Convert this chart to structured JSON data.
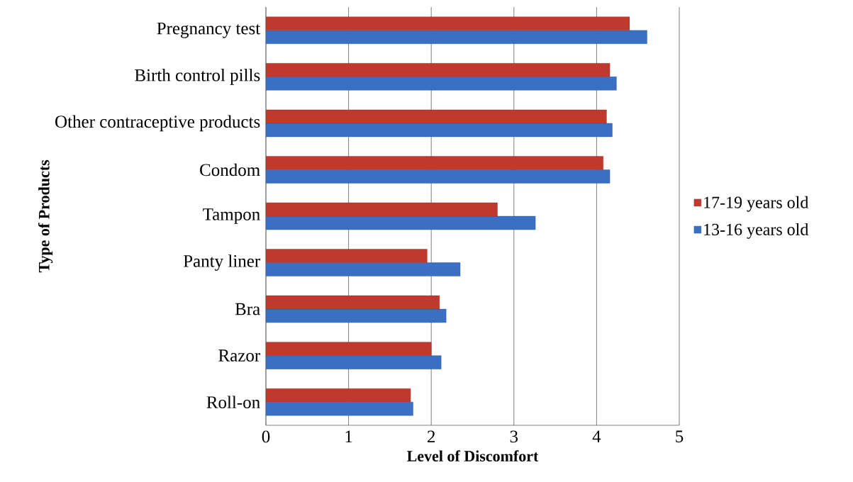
{
  "chart_data": {
    "type": "bar",
    "orientation": "horizontal",
    "xlabel": "Level of Discomfort",
    "ylabel": "Type of Products",
    "categories": [
      "Pregnancy test",
      "Birth control pills",
      "Other contraceptive products",
      "Condom",
      "Tampon",
      "Panty liner",
      "Bra",
      "Razor",
      "Roll-on"
    ],
    "series": [
      {
        "name": "13-16 years old",
        "color": "#3a6fc4",
        "values": [
          4.61,
          4.24,
          4.19,
          4.16,
          3.26,
          2.35,
          2.18,
          2.12,
          1.78
        ]
      },
      {
        "name": "17-19 years old",
        "color": "#c0392e",
        "values": [
          4.4,
          4.16,
          4.12,
          4.08,
          2.8,
          1.95,
          2.1,
          2.0,
          1.75
        ]
      }
    ],
    "xlim": [
      0,
      5
    ],
    "xticks": [
      0,
      1,
      2,
      3,
      4,
      5
    ],
    "grid": "x",
    "legend": "right"
  }
}
